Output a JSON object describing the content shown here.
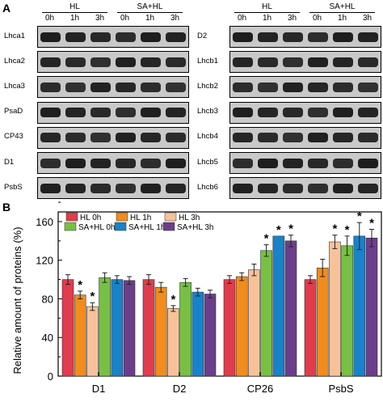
{
  "panel_a": {
    "letter": "A",
    "headers": {
      "group1": "HL",
      "group2": "SA+HL",
      "times": [
        "0h",
        "1h",
        "3h"
      ]
    },
    "left_rows": [
      "Lhca1",
      "Lhca2",
      "Lhca3",
      "PsaD",
      "CP43",
      "D1",
      "PsbS"
    ],
    "right_rows": [
      "D2",
      "Lhcb1",
      "Lhcb2",
      "Lhcb3",
      "Lhcb4",
      "Lhcb5",
      "Lhcb6"
    ]
  },
  "panel_b": {
    "letter": "B"
  },
  "chart_data": {
    "type": "bar",
    "categories": [
      "D1",
      "D2",
      "CP26",
      "PsbS"
    ],
    "ylabel": "Relative amount of proteins (%)",
    "xlabel": "",
    "ylim": [
      0,
      170
    ],
    "yticks": [
      0,
      40,
      80,
      120,
      160
    ],
    "legend_position": "top-left",
    "significance_marker": "*",
    "series": [
      {
        "name": "HL 0h",
        "color": "#e03c4e",
        "values": [
          100,
          100,
          100,
          100
        ],
        "errors": [
          5,
          5,
          4,
          4
        ],
        "significant": [
          false,
          false,
          false,
          false
        ]
      },
      {
        "name": "HL 1h",
        "color": "#f28c1c",
        "values": [
          84,
          92,
          103,
          112
        ],
        "errors": [
          4,
          5,
          4,
          9
        ],
        "significant": [
          true,
          false,
          false,
          false
        ]
      },
      {
        "name": "HL 3h",
        "color": "#f7c29a",
        "values": [
          72,
          70,
          110,
          139
        ],
        "errors": [
          4,
          3,
          6,
          7
        ],
        "significant": [
          true,
          true,
          false,
          true
        ]
      },
      {
        "name": "SA+HL 0h",
        "color": "#77c043",
        "values": [
          102,
          97,
          130,
          135
        ],
        "errors": [
          5,
          4,
          6,
          10
        ],
        "significant": [
          false,
          false,
          true,
          true
        ]
      },
      {
        "name": "SA+HL 1h",
        "color": "#1a82c8",
        "values": [
          100,
          87,
          145,
          145
        ],
        "errors": [
          4,
          4,
          0,
          14
        ],
        "significant": [
          false,
          false,
          true,
          true
        ]
      },
      {
        "name": "SA+HL 3h",
        "color": "#6b3e8c",
        "values": [
          99,
          85,
          140,
          143
        ],
        "errors": [
          4,
          4,
          6,
          9
        ],
        "significant": [
          false,
          false,
          true,
          true
        ]
      }
    ]
  }
}
